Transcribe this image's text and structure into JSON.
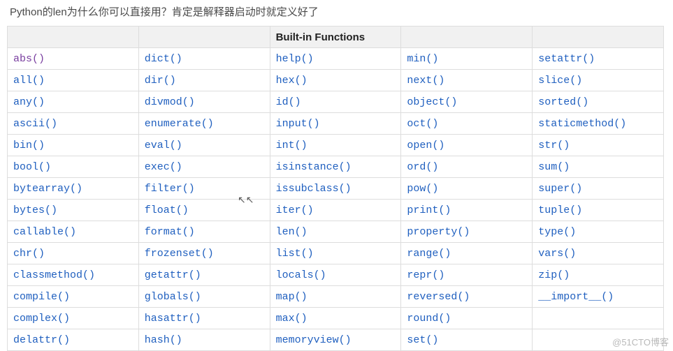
{
  "caption": "Python的len为什么你可以直接用？肯定是解释器启动时就定义好了",
  "table": {
    "header": {
      "title": "Built-in Functions",
      "title_col_index": 2,
      "cols": 5
    },
    "border_color": "#dddddd",
    "header_bg": "#f1f1f1",
    "link_color": "#1f5fbf",
    "visited_color": "#7a3fa0",
    "font_family_code": "Consolas",
    "columns": [
      [
        "abs()",
        "all()",
        "any()",
        "ascii()",
        "bin()",
        "bool()",
        "bytearray()",
        "bytes()",
        "callable()",
        "chr()",
        "classmethod()",
        "compile()",
        "complex()",
        "delattr()"
      ],
      [
        "dict()",
        "dir()",
        "divmod()",
        "enumerate()",
        "eval()",
        "exec()",
        "filter()",
        "float()",
        "format()",
        "frozenset()",
        "getattr()",
        "globals()",
        "hasattr()",
        "hash()"
      ],
      [
        "help()",
        "hex()",
        "id()",
        "input()",
        "int()",
        "isinstance()",
        "issubclass()",
        "iter()",
        "len()",
        "list()",
        "locals()",
        "map()",
        "max()",
        "memoryview()"
      ],
      [
        "min()",
        "next()",
        "object()",
        "oct()",
        "open()",
        "ord()",
        "pow()",
        "print()",
        "property()",
        "range()",
        "repr()",
        "reversed()",
        "round()",
        "set()"
      ],
      [
        "setattr()",
        "slice()",
        "sorted()",
        "staticmethod()",
        "str()",
        "sum()",
        "super()",
        "tuple()",
        "type()",
        "vars()",
        "zip()",
        "__import__()",
        "",
        ""
      ]
    ],
    "visited_cells": [
      [
        0,
        0
      ]
    ]
  },
  "watermark": "@51CTO博客",
  "cursor_glyph": "⇖⇖"
}
